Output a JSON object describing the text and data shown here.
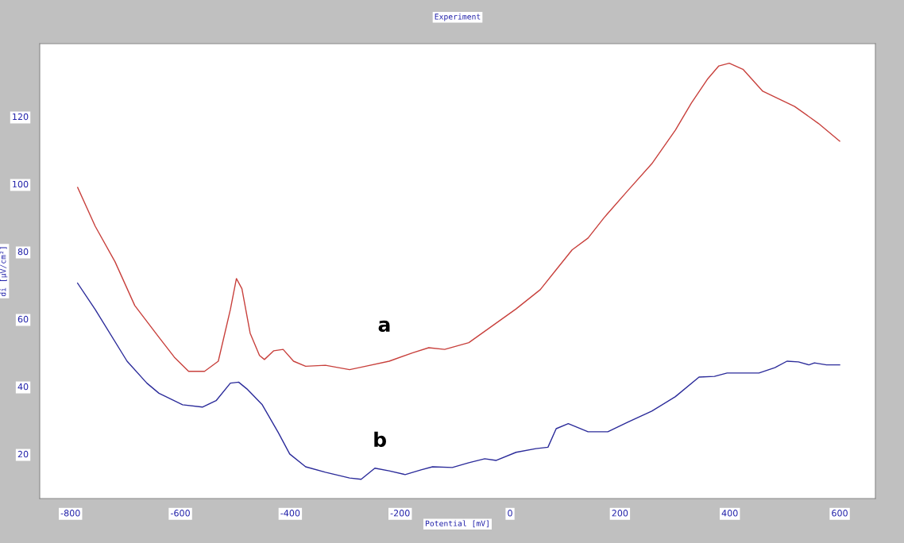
{
  "chart_data": {
    "type": "line",
    "title": "Experiment",
    "xlabel": "Potential [mV]",
    "ylabel": "di [μV/cm²]",
    "xlim": [
      -856,
      665
    ],
    "ylim": [
      6.8,
      141.6
    ],
    "xticks": [
      -800,
      -600,
      -400,
      -200,
      0,
      200,
      400,
      600
    ],
    "yticks": [
      20,
      40,
      60,
      80,
      100,
      120
    ],
    "grid": false,
    "legend": false,
    "series": [
      {
        "color": "#c8403c",
        "x": [
          -787,
          -755,
          -719,
          -683,
          -639,
          -611,
          -585,
          -556,
          -531,
          -509,
          -498,
          -488,
          -473,
          -456,
          -447,
          -430,
          -413,
          -394,
          -372,
          -336,
          -292,
          -263,
          -220,
          -177,
          -148,
          -119,
          -75,
          -32,
          11,
          55,
          84,
          113,
          142,
          171,
          214,
          258,
          301,
          330,
          359,
          380,
          399,
          424,
          460,
          518,
          561,
          600
        ],
        "values": [
          99,
          87.5,
          77,
          64,
          54.6,
          48.7,
          44.5,
          44.5,
          47.5,
          62.8,
          72,
          69,
          55.8,
          49.2,
          48,
          50.6,
          51,
          47.5,
          46,
          46.3,
          45,
          46,
          47.5,
          50,
          51.5,
          51,
          53,
          58,
          63,
          68.7,
          74.6,
          80.5,
          84,
          90,
          98,
          106,
          116,
          124,
          131,
          135,
          135.8,
          134,
          127.5,
          123,
          118,
          112.7
        ]
      },
      {
        "color": "#2b2b9a",
        "x": [
          -787,
          -755,
          -697,
          -661,
          -639,
          -596,
          -560,
          -535,
          -509,
          -494,
          -479,
          -451,
          -422,
          -401,
          -372,
          -336,
          -292,
          -271,
          -246,
          -220,
          -191,
          -162,
          -141,
          -105,
          -75,
          -46,
          -25,
          11,
          47,
          69,
          84,
          106,
          142,
          178,
          214,
          258,
          301,
          344,
          372,
          395,
          424,
          453,
          482,
          504,
          525,
          544,
          554,
          576,
          600
        ],
        "values": [
          70.6,
          62.8,
          47.5,
          41,
          38,
          34.6,
          33.9,
          35.8,
          41,
          41.3,
          39.3,
          34.6,
          26.4,
          20,
          16.2,
          14.6,
          12.9,
          12.5,
          15.8,
          15,
          13.9,
          15.3,
          16.2,
          16,
          17.4,
          18.6,
          18.1,
          20.5,
          21.6,
          22,
          27.5,
          29,
          26.6,
          26.6,
          29.4,
          32.7,
          37,
          42.8,
          43,
          44,
          44,
          44,
          45.6,
          47.5,
          47.3,
          46.4,
          47,
          46.4,
          46.4
        ]
      }
    ],
    "annotations": [
      "a",
      "b"
    ]
  }
}
